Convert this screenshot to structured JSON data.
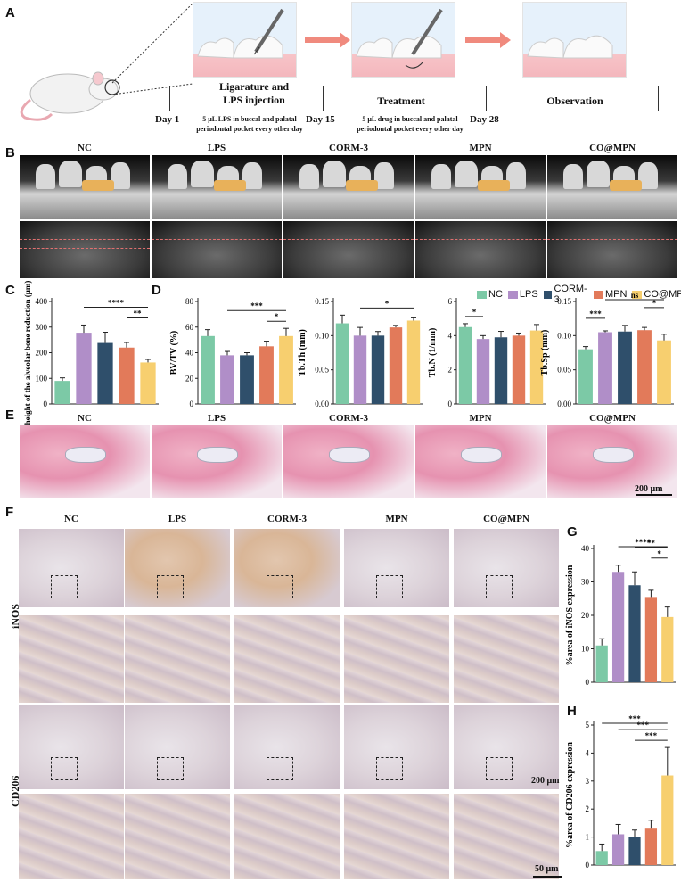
{
  "panel_letters": {
    "A": "A",
    "B": "B",
    "C": "C",
    "D": "D",
    "E": "E",
    "F": "F",
    "G": "G",
    "H": "H"
  },
  "schematic": {
    "stage1": "Ligarature and\nLPS injection",
    "stage2": "Treatment",
    "stage3": "Observation",
    "day1": "Day 1",
    "day15": "Day 15",
    "day28": "Day 28",
    "note1": "5 μL LPS in buccal and palatal\nperiodontal pocket every other day",
    "note2": "5 μL drug in buccal and palatal\nperiodontal pocket every other day"
  },
  "groups": [
    "NC",
    "LPS",
    "CORM-3",
    "MPN",
    "CO@MPN"
  ],
  "colors": {
    "NC": "#7cc9a6",
    "LPS": "#b08ec8",
    "CORM-3": "#2f4f6b",
    "MPN": "#e27a5a",
    "CO@MPN": "#f7cf6f"
  },
  "legend_items": [
    "NC",
    "LPS",
    "CORM-3",
    "MPN",
    "CO@MPN"
  ],
  "he_scale": "200 μm",
  "ihc": {
    "row1": "iNOS",
    "row2": "CD206",
    "scale1": "200 μm",
    "scale2": "50 μm"
  },
  "chart_data": [
    {
      "id": "C",
      "type": "bar",
      "categories": [
        "NC",
        "LPS",
        "CORM-3",
        "MPN",
        "CO@MPN"
      ],
      "values": [
        90,
        278,
        238,
        220,
        162
      ],
      "errors": [
        12,
        30,
        42,
        20,
        12
      ],
      "ylabel": "height of the alveolar bone reduction (μm)",
      "ylim": [
        0,
        400
      ],
      "yticks": [
        0,
        100,
        200,
        300,
        400
      ],
      "sig": [
        {
          "from": 1,
          "to": 4,
          "label": "****"
        },
        {
          "from": 3,
          "to": 4,
          "label": "**"
        }
      ]
    },
    {
      "id": "D1",
      "type": "bar",
      "categories": [
        "NC",
        "LPS",
        "CORM-3",
        "MPN",
        "CO@MPN"
      ],
      "values": [
        53,
        38,
        38,
        45,
        53
      ],
      "errors": [
        5,
        3,
        2,
        4,
        6
      ],
      "ylabel": "BV/TV (%)",
      "ylim": [
        0,
        80
      ],
      "yticks": [
        0,
        20,
        40,
        60,
        80
      ],
      "sig": [
        {
          "from": 1,
          "to": 4,
          "label": "***"
        },
        {
          "from": 3,
          "to": 4,
          "label": "*"
        }
      ]
    },
    {
      "id": "D2",
      "type": "bar",
      "categories": [
        "NC",
        "LPS",
        "CORM-3",
        "MPN",
        "CO@MPN"
      ],
      "values": [
        0.118,
        0.1,
        0.1,
        0.112,
        0.122
      ],
      "errors": [
        0.012,
        0.012,
        0.006,
        0.003,
        0.004
      ],
      "ylabel": "Tb.Th (mm)",
      "ylim": [
        0,
        0.15
      ],
      "yticks": [
        0.0,
        0.05,
        0.1,
        0.15
      ],
      "sig": [
        {
          "from": 1,
          "to": 4,
          "label": "*"
        }
      ]
    },
    {
      "id": "D3",
      "type": "bar",
      "categories": [
        "NC",
        "LPS",
        "CORM-3",
        "MPN",
        "CO@MPN"
      ],
      "values": [
        4.5,
        3.8,
        3.9,
        4.0,
        4.3
      ],
      "errors": [
        0.2,
        0.2,
        0.35,
        0.15,
        0.35
      ],
      "ylabel": "Tb.N (1/mm)",
      "ylim": [
        0,
        6
      ],
      "yticks": [
        0,
        2,
        4,
        6
      ],
      "sig": [
        {
          "from": 0,
          "to": 1,
          "label": "*"
        }
      ]
    },
    {
      "id": "D4",
      "type": "bar",
      "categories": [
        "NC",
        "LPS",
        "CORM-3",
        "MPN",
        "CO@MPN"
      ],
      "values": [
        0.08,
        0.105,
        0.106,
        0.108,
        0.093
      ],
      "errors": [
        0.004,
        0.002,
        0.009,
        0.004,
        0.009
      ],
      "ylabel": "Tb.Sp (mm)",
      "ylim": [
        0,
        0.15
      ],
      "yticks": [
        0.0,
        0.05,
        0.1,
        0.15
      ],
      "sig": [
        {
          "from": 0,
          "to": 1,
          "label": "***"
        },
        {
          "from": 1,
          "to": 4,
          "label": "ns"
        },
        {
          "from": 3,
          "to": 4,
          "label": "*"
        }
      ]
    },
    {
      "id": "G",
      "type": "bar",
      "categories": [
        "NC",
        "LPS",
        "CORM-3",
        "MPN",
        "CO@MPN"
      ],
      "values": [
        11,
        33,
        29,
        25.5,
        19.5
      ],
      "errors": [
        2,
        2,
        4,
        2,
        3
      ],
      "ylabel": "%area of iNOS expression",
      "ylim": [
        0,
        40
      ],
      "yticks": [
        0,
        10,
        20,
        30,
        40
      ],
      "sig": [
        {
          "from": 1,
          "to": 4,
          "label": "****"
        },
        {
          "from": 2,
          "to": 4,
          "label": "**"
        },
        {
          "from": 3,
          "to": 4,
          "label": "*"
        }
      ]
    },
    {
      "id": "H",
      "type": "bar",
      "categories": [
        "NC",
        "LPS",
        "CORM-3",
        "MPN",
        "CO@MPN"
      ],
      "values": [
        0.5,
        1.1,
        1.0,
        1.3,
        3.2
      ],
      "errors": [
        0.25,
        0.35,
        0.25,
        0.3,
        1.0
      ],
      "ylabel": "%area of CD206 expression",
      "ylim": [
        0,
        5
      ],
      "yticks": [
        0,
        1,
        2,
        3,
        4,
        5
      ],
      "sig": [
        {
          "from": 0,
          "to": 4,
          "label": "***"
        },
        {
          "from": 1,
          "to": 4,
          "label": "***"
        },
        {
          "from": 2,
          "to": 4,
          "label": "***"
        }
      ]
    }
  ]
}
